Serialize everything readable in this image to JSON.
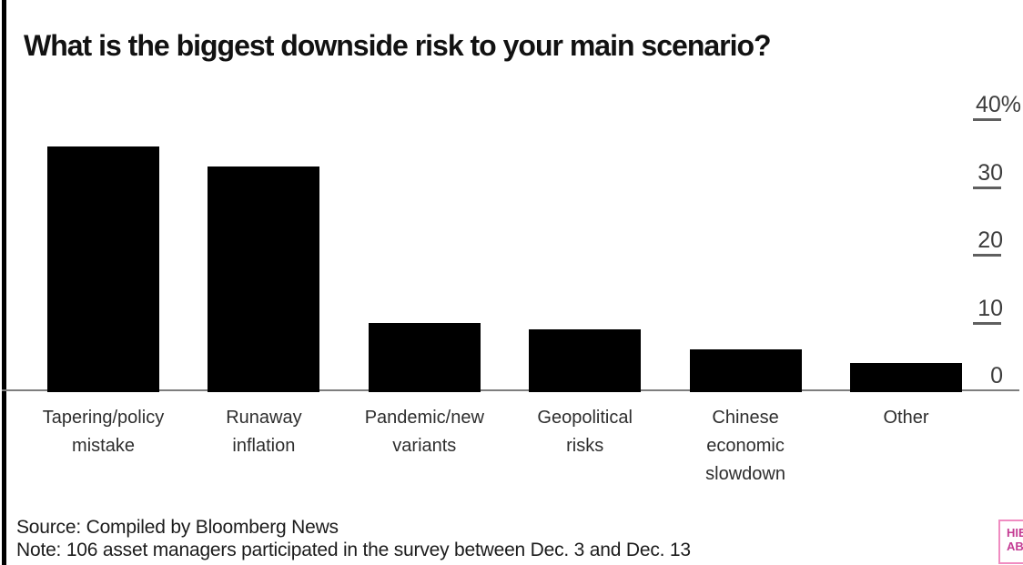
{
  "chart_data": {
    "type": "bar",
    "title": "What is the biggest downside risk to your main scenario?",
    "categories": [
      "Tapering/policy mistake",
      "Runaway inflation",
      "Pandemic/new variants",
      "Geopolitical risks",
      "Chinese economic slowdown",
      "Other"
    ],
    "category_display_lines": [
      [
        "Tapering/policy",
        "mistake"
      ],
      [
        "Runaway",
        "inflation"
      ],
      [
        "Pandemic/new",
        "variants"
      ],
      [
        "Geopolitical",
        "risks"
      ],
      [
        "Chinese",
        "economic",
        "slowdown"
      ],
      [
        "Other"
      ]
    ],
    "values": [
      36,
      33,
      10,
      9,
      6,
      4
    ],
    "unit": "%",
    "xlabel": "",
    "ylabel": "",
    "ylim": [
      0,
      40
    ],
    "yticks": [
      {
        "value": 40,
        "label": "40%"
      },
      {
        "value": 30,
        "label": "30"
      },
      {
        "value": 20,
        "label": "20"
      },
      {
        "value": 10,
        "label": "10"
      },
      {
        "value": 0,
        "label": "0"
      }
    ],
    "axis_side": "right",
    "grid": false,
    "bar_color": "#000000",
    "legend_position": "none"
  },
  "footer": {
    "source": "Source: Compiled by Bloomberg News",
    "note": "Note: 106 asset managers participated in the survey between Dec. 3 and Dec. 13"
  },
  "badge": {
    "visible_line1": "HIE",
    "visible_line2": "AB",
    "text_color": "#c43c93",
    "border_color": "#f08cc1"
  },
  "colors": {
    "bar": "#000000",
    "baseline": "#7e7e7e",
    "tick_dash": "#5f5f5f",
    "axis_label": "#3d3d3d",
    "category_label": "#2e2e2e",
    "title": "#121212",
    "footer_text": "#1c1c1c",
    "left_edge_bar": "#000000",
    "background": "#ffffff"
  }
}
